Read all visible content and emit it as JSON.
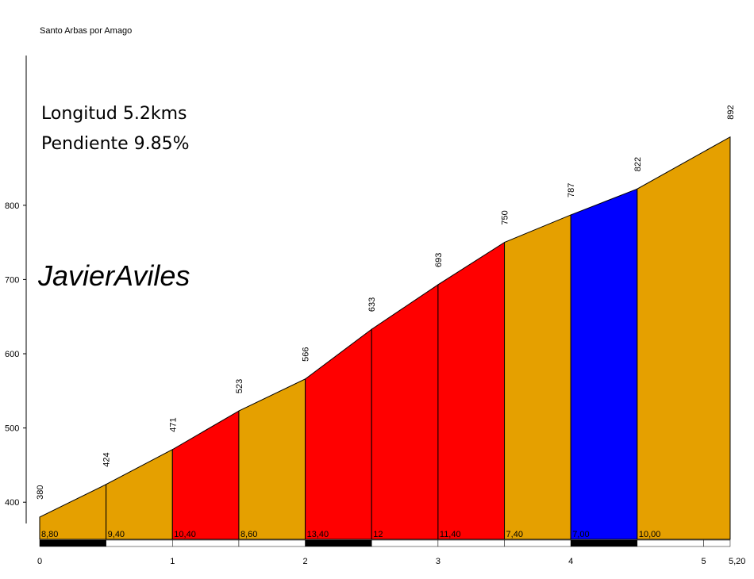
{
  "chart_data": {
    "type": "area",
    "title": "Santo Arbas por Amago",
    "info_lines": [
      "Longitud 5.2kms",
      "Pendiente 9.85%"
    ],
    "author": "JavierAviles",
    "x_unit": "km",
    "y_unit": "m",
    "ylim": [
      350,
      950
    ],
    "xlim": [
      0,
      5.2
    ],
    "y_ticks": [
      400,
      500,
      600,
      700,
      800
    ],
    "x_tick_labels": [
      "0",
      "1",
      "2",
      "3",
      "4",
      "5",
      "5,20"
    ],
    "x_ticks": [
      0,
      1,
      2,
      3,
      4,
      5,
      5.2
    ],
    "points": [
      {
        "x": 0,
        "y": 380,
        "label": "380"
      },
      {
        "x": 0.5,
        "y": 424,
        "label": "424"
      },
      {
        "x": 1,
        "y": 471,
        "label": "471"
      },
      {
        "x": 1.5,
        "y": 523,
        "label": "523"
      },
      {
        "x": 2,
        "y": 566,
        "label": "566"
      },
      {
        "x": 2.5,
        "y": 633,
        "label": "633"
      },
      {
        "x": 3,
        "y": 693,
        "label": "693"
      },
      {
        "x": 3.5,
        "y": 750,
        "label": "750"
      },
      {
        "x": 4,
        "y": 787,
        "label": "787"
      },
      {
        "x": 4.5,
        "y": 822,
        "label": "822"
      },
      {
        "x": 5.2,
        "y": 892,
        "label": "892"
      }
    ],
    "segments": [
      {
        "from": 0,
        "to": 0.5,
        "gradient": "8,80",
        "color": "#e5a000"
      },
      {
        "from": 0.5,
        "to": 1,
        "gradient": "9,40",
        "color": "#e5a000"
      },
      {
        "from": 1,
        "to": 1.5,
        "gradient": "10,40",
        "color": "#ff0000"
      },
      {
        "from": 1.5,
        "to": 2,
        "gradient": "8,60",
        "color": "#e5a000"
      },
      {
        "from": 2,
        "to": 2.5,
        "gradient": "13,40",
        "color": "#ff0000"
      },
      {
        "from": 2.5,
        "to": 3,
        "gradient": "12",
        "color": "#ff0000"
      },
      {
        "from": 3,
        "to": 3.5,
        "gradient": "11,40",
        "color": "#ff0000"
      },
      {
        "from": 3.5,
        "to": 4,
        "gradient": "7,40",
        "color": "#e5a000"
      },
      {
        "from": 4,
        "to": 4.5,
        "gradient": "7,00",
        "color": "#0000ff"
      },
      {
        "from": 4.5,
        "to": 5.2,
        "gradient": "10,00",
        "color": "#e5a000"
      }
    ],
    "km_bar_colors": [
      "#000000",
      "#ffffff"
    ]
  }
}
